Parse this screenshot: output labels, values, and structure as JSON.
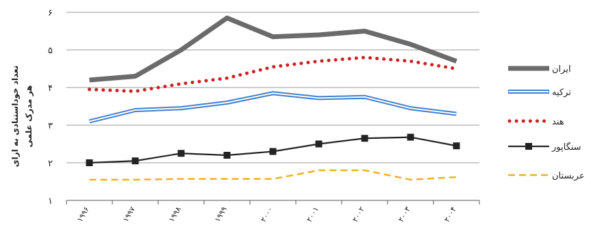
{
  "chart_data": {
    "type": "line",
    "ylabel_lines": [
      "تعداد خوداستنادی به ازای",
      "هر مدرک علمی"
    ],
    "categories": [
      "۱۹۹۶",
      "۱۹۹۷",
      "۱۹۹۸",
      "۱۹۹۹",
      "۲۰۰۰",
      "۲۰۰۱",
      "۲۰۰۲",
      "۲۰۰۳",
      "۲۰۰۴"
    ],
    "ylim": [
      1,
      6
    ],
    "yticks": [
      1,
      2,
      3,
      4,
      5,
      6
    ],
    "ytick_labels": [
      "۱",
      "۲",
      "۳",
      "۴",
      "۵",
      "۶"
    ],
    "grid": true,
    "legend_position": "right",
    "series": [
      {
        "name": "ایران",
        "values": [
          4.2,
          4.3,
          5.0,
          5.85,
          5.35,
          5.4,
          5.5,
          5.15,
          4.7
        ],
        "color": "#6b6b6b",
        "style": "thick"
      },
      {
        "name": "ترکیه",
        "values": [
          3.1,
          3.4,
          3.45,
          3.6,
          3.85,
          3.72,
          3.75,
          3.45,
          3.3
        ],
        "color": "#3f7fcf",
        "style": "double"
      },
      {
        "name": "هند",
        "values": [
          3.95,
          3.9,
          4.1,
          4.25,
          4.55,
          4.7,
          4.8,
          4.7,
          4.5
        ],
        "color": "#cc2222",
        "style": "dotted"
      },
      {
        "name": "سنگاپور",
        "values": [
          2.0,
          2.05,
          2.25,
          2.2,
          2.3,
          2.5,
          2.65,
          2.68,
          2.45
        ],
        "color": "#222222",
        "style": "square-markers"
      },
      {
        "name": "عربستان",
        "values": [
          1.55,
          1.55,
          1.57,
          1.57,
          1.57,
          1.8,
          1.8,
          1.55,
          1.62
        ],
        "color": "#f0b020",
        "style": "dashed"
      }
    ]
  }
}
